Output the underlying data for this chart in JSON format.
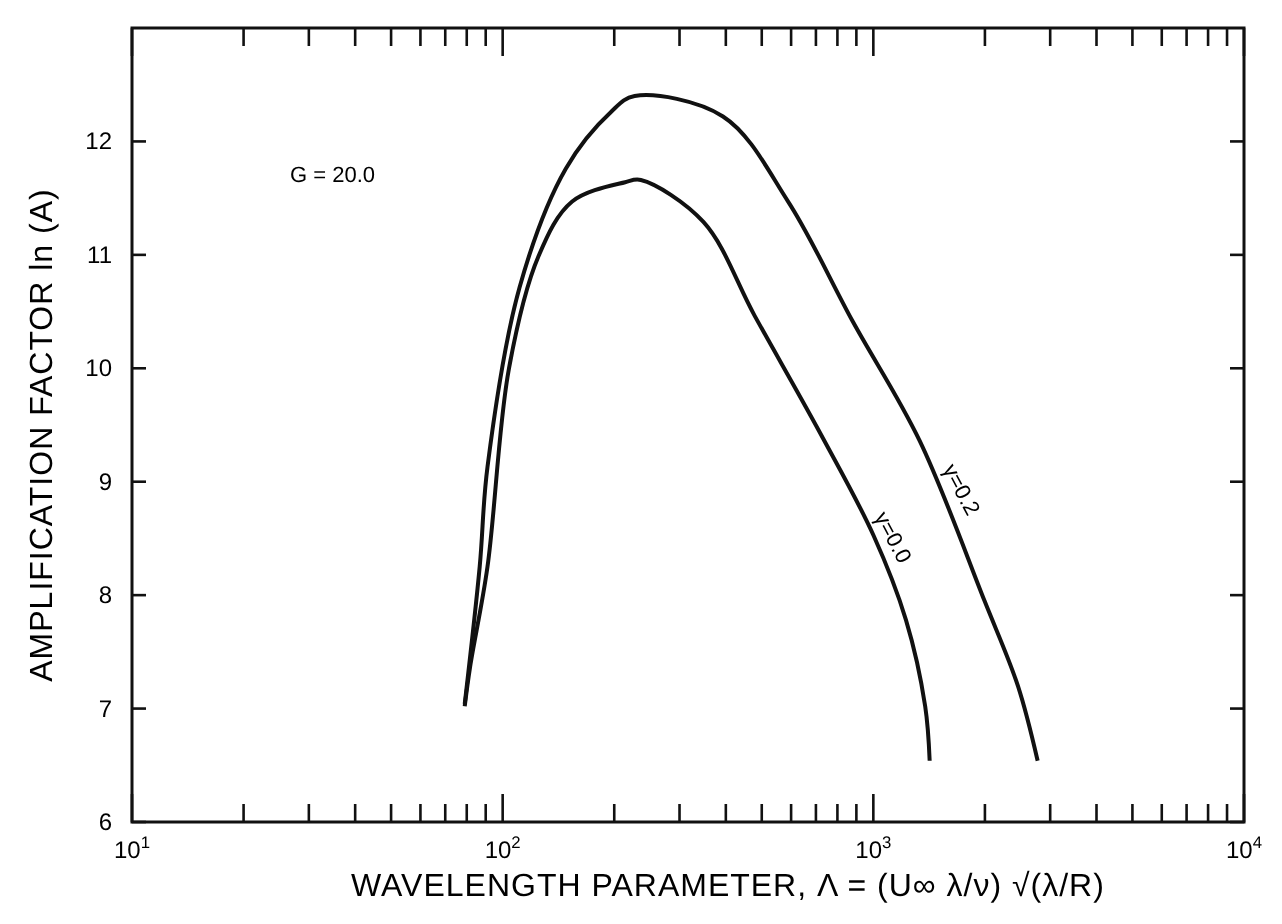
{
  "chart_data": {
    "type": "line",
    "xlabel": "WAVELENGTH PARAMETER, Λ = (U∞ λ/ν) √(λ/R)",
    "ylabel": "AMPLIFICATION FACTOR  ln (A)",
    "log": "x",
    "xlim": [
      10,
      10000
    ],
    "ylim": [
      6,
      13
    ],
    "marker": "none",
    "line_style": "solid",
    "xticks": [
      {
        "value": 10,
        "label": "10$^{1}$"
      },
      {
        "value": 20,
        "label": null
      },
      {
        "value": 30,
        "label": null
      },
      {
        "value": 40,
        "label": null
      },
      {
        "value": 50,
        "label": null
      },
      {
        "value": 60,
        "label": null
      },
      {
        "value": 70,
        "label": null
      },
      {
        "value": 80,
        "label": null
      },
      {
        "value": 90,
        "label": null
      },
      {
        "value": 100,
        "label": "10$^{2}$"
      },
      {
        "value": 200,
        "label": null
      },
      {
        "value": 300,
        "label": null
      },
      {
        "value": 400,
        "label": null
      },
      {
        "value": 500,
        "label": null
      },
      {
        "value": 600,
        "label": null
      },
      {
        "value": 700,
        "label": null
      },
      {
        "value": 800,
        "label": null
      },
      {
        "value": 900,
        "label": null
      },
      {
        "value": 1000,
        "label": "10$^{3}$"
      },
      {
        "value": 2000,
        "label": null
      },
      {
        "value": 3000,
        "label": null
      },
      {
        "value": 4000,
        "label": null
      },
      {
        "value": 5000,
        "label": null
      },
      {
        "value": 6000,
        "label": null
      },
      {
        "value": 7000,
        "label": null
      },
      {
        "value": 8000,
        "label": null
      },
      {
        "value": 9000,
        "label": null
      },
      {
        "value": 10000,
        "label": "10$^{4}$"
      }
    ],
    "yticks": [
      6,
      7,
      8,
      9,
      10,
      11,
      12
    ],
    "series": [
      {
        "color": "#111111",
        "x": [
          79,
          81.7,
          91,
          104,
          125,
          154,
          214,
          236,
          348,
          479,
          724,
          1000,
          1225,
          1380,
          1419
        ],
        "values": [
          7.02,
          7.37,
          8.25,
          10.0,
          10.99,
          11.47,
          11.64,
          11.66,
          11.29,
          10.46,
          9.41,
          8.53,
          7.78,
          7.02,
          6.54
        ]
      },
      {
        "color": "#111111",
        "x": [
          79,
          86.7,
          91,
          111,
          148,
          196,
          227,
          393,
          589,
          881,
          1334,
          1995,
          2455,
          2775
        ],
        "values": [
          7.04,
          8.25,
          9.13,
          10.71,
          11.76,
          12.26,
          12.4,
          12.22,
          11.47,
          10.41,
          9.36,
          7.95,
          7.2,
          6.54
        ]
      }
    ],
    "annotations": [
      "G = 20.0",
      {
        "text": "γ=0.0",
        "x": 1085,
        "y": 8.48
      },
      {
        "text": "γ=0.2",
        "x": 1660,
        "y": 8.9
      }
    ]
  }
}
